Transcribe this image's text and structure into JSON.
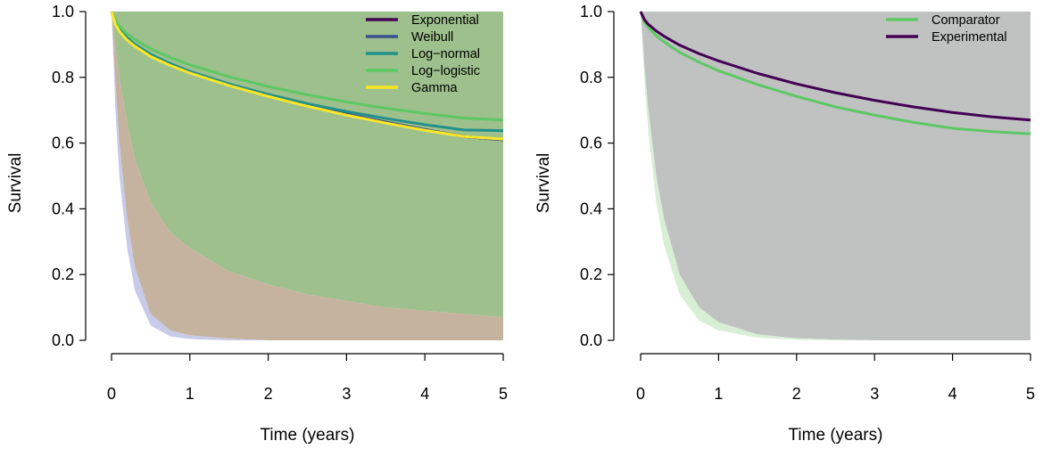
{
  "chart_data": [
    {
      "type": "line",
      "xlabel": "Time (years)",
      "ylabel": "Survival",
      "xlim": [
        0,
        5
      ],
      "ylim": [
        0,
        1
      ],
      "x_ticks": [
        "0",
        "1",
        "2",
        "3",
        "4",
        "5"
      ],
      "y_ticks": [
        "0.0",
        "0.2",
        "0.4",
        "0.6",
        "0.8",
        "1.0"
      ],
      "legend_position": "top-right",
      "grid": false,
      "x": [
        0,
        0.05,
        0.1,
        0.2,
        0.3,
        0.5,
        0.75,
        1,
        1.5,
        2,
        2.5,
        3,
        3.5,
        4,
        4.5,
        5
      ],
      "series": [
        {
          "name": "Exponential",
          "color": "#440154",
          "values": [
            1.0,
            0.965,
            0.945,
            0.918,
            0.898,
            0.868,
            0.84,
            0.816,
            0.778,
            0.745,
            0.715,
            0.688,
            0.664,
            0.641,
            0.62,
            0.61
          ]
        },
        {
          "name": "Weibull",
          "color": "#3B528B",
          "values": [
            1.0,
            0.965,
            0.945,
            0.918,
            0.898,
            0.868,
            0.84,
            0.816,
            0.778,
            0.745,
            0.715,
            0.688,
            0.664,
            0.641,
            0.62,
            0.61
          ]
        },
        {
          "name": "Log−normal",
          "color": "#21908C",
          "values": [
            1.0,
            0.968,
            0.948,
            0.92,
            0.9,
            0.87,
            0.842,
            0.818,
            0.78,
            0.748,
            0.72,
            0.696,
            0.675,
            0.656,
            0.64,
            0.638
          ]
        },
        {
          "name": "Log−logistic",
          "color": "#5DC863",
          "values": [
            1.0,
            0.972,
            0.955,
            0.932,
            0.914,
            0.887,
            0.86,
            0.838,
            0.802,
            0.772,
            0.747,
            0.725,
            0.706,
            0.69,
            0.676,
            0.67
          ]
        },
        {
          "name": "Gamma",
          "color": "#FDE725",
          "values": [
            1.0,
            0.96,
            0.94,
            0.913,
            0.894,
            0.863,
            0.836,
            0.813,
            0.775,
            0.742,
            0.712,
            0.685,
            0.661,
            0.639,
            0.62,
            0.612
          ]
        }
      ],
      "bands": [
        {
          "color": "#9dc08d",
          "lower": [
            1.0,
            0.9,
            0.8,
            0.66,
            0.55,
            0.42,
            0.33,
            0.28,
            0.21,
            0.17,
            0.14,
            0.12,
            0.1,
            0.09,
            0.08,
            0.07
          ],
          "upper": [
            1,
            1,
            1,
            1,
            1,
            1,
            1,
            1,
            1,
            1,
            1,
            1,
            1,
            1,
            1,
            1
          ]
        },
        {
          "color": "#c5b3a0",
          "lower": [
            1.0,
            0.78,
            0.6,
            0.37,
            0.22,
            0.08,
            0.03,
            0.015,
            0.005,
            0.0,
            0.0,
            0.0,
            0.0,
            0.0,
            0.0,
            0.0
          ],
          "upper": [
            1.0,
            0.9,
            0.8,
            0.66,
            0.55,
            0.42,
            0.33,
            0.28,
            0.21,
            0.17,
            0.14,
            0.12,
            0.1,
            0.09,
            0.08,
            0.07
          ]
        },
        {
          "color": "#c7cae8",
          "lower": [
            1.0,
            0.7,
            0.5,
            0.28,
            0.15,
            0.045,
            0.012,
            0.004,
            0.0,
            0.0,
            0.0,
            0.0,
            0.0,
            0.0,
            0.0,
            0.0
          ],
          "upper": [
            1.0,
            0.78,
            0.6,
            0.37,
            0.22,
            0.08,
            0.03,
            0.015,
            0.005,
            0.0,
            0.0,
            0.0,
            0.0,
            0.0,
            0.0,
            0.0
          ]
        }
      ]
    },
    {
      "type": "line",
      "xlabel": "Time (years)",
      "ylabel": "Survival",
      "xlim": [
        0,
        5
      ],
      "ylim": [
        0,
        1
      ],
      "x_ticks": [
        "0",
        "1",
        "2",
        "3",
        "4",
        "5"
      ],
      "y_ticks": [
        "0.0",
        "0.2",
        "0.4",
        "0.6",
        "0.8",
        "1.0"
      ],
      "legend_position": "top-right",
      "grid": false,
      "x": [
        0,
        0.05,
        0.1,
        0.2,
        0.3,
        0.5,
        0.75,
        1,
        1.5,
        2,
        2.5,
        3,
        3.5,
        4,
        4.5,
        5
      ],
      "series": [
        {
          "name": "Comparator",
          "color": "#5DC863",
          "values": [
            1.0,
            0.968,
            0.951,
            0.927,
            0.908,
            0.876,
            0.846,
            0.82,
            0.778,
            0.742,
            0.71,
            0.685,
            0.663,
            0.645,
            0.635,
            0.628
          ]
        },
        {
          "name": "Experimental",
          "color": "#440154",
          "values": [
            1.0,
            0.975,
            0.961,
            0.941,
            0.925,
            0.898,
            0.872,
            0.85,
            0.812,
            0.78,
            0.753,
            0.73,
            0.71,
            0.693,
            0.68,
            0.67
          ]
        }
      ],
      "bands": [
        {
          "color": "#c0c2c2",
          "lower": [
            1.0,
            0.83,
            0.7,
            0.5,
            0.37,
            0.2,
            0.1,
            0.055,
            0.018,
            0.006,
            0.002,
            0.0,
            0.0,
            0.0,
            0.0,
            0.0
          ],
          "upper": [
            1,
            1,
            1,
            1,
            1,
            1,
            1,
            1,
            1,
            1,
            1,
            1,
            1,
            1,
            1,
            1
          ]
        },
        {
          "color": "#d8efd5",
          "lower": [
            1.0,
            0.78,
            0.63,
            0.42,
            0.29,
            0.14,
            0.06,
            0.03,
            0.008,
            0.002,
            0.0,
            0.0,
            0.0,
            0.0,
            0.0,
            0.0
          ],
          "upper": [
            1.0,
            0.83,
            0.7,
            0.5,
            0.37,
            0.2,
            0.1,
            0.055,
            0.018,
            0.006,
            0.002,
            0.0,
            0.0,
            0.0,
            0.0,
            0.0
          ]
        }
      ]
    }
  ]
}
